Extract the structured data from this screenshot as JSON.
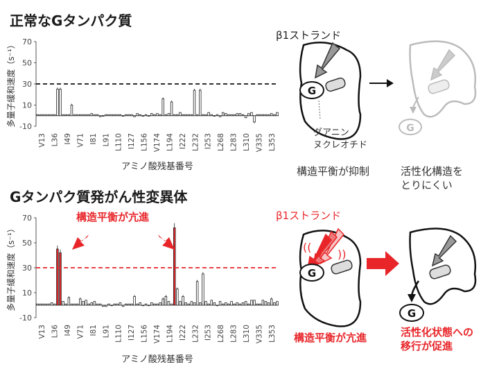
{
  "headings": {
    "top": "正常なGタンパク質",
    "bottom": "Gタンパク質発がん性変異体"
  },
  "chart_data": [
    {
      "type": "bar",
      "title": "正常なGタンパク質",
      "ylabel": "多量子緩和速度（s⁻¹）",
      "xlabel": "アミノ酸残基番号",
      "ylim": [
        -10,
        70
      ],
      "yticks": [
        -10,
        10,
        30,
        50,
        70
      ],
      "reference_line": 30,
      "reference_color": "#111111",
      "bar_color": "#ffffff",
      "tick_labels": [
        "V13",
        "L36",
        "I49",
        "V71",
        "I81",
        "L91",
        "L110",
        "I127",
        "L156",
        "V174",
        "L194",
        "I222",
        "L232",
        "I253",
        "L268",
        "L283",
        "L310",
        "V335",
        "L353"
      ],
      "values": [
        1,
        1,
        1,
        1,
        1,
        1,
        1,
        25,
        25,
        1,
        1,
        1,
        10,
        1,
        1,
        1,
        1,
        1,
        1,
        2,
        1,
        1,
        -1,
        0,
        1,
        1,
        1,
        1,
        1,
        1,
        0,
        1,
        1,
        1,
        -1,
        2,
        1,
        0,
        1,
        0,
        2,
        1,
        2,
        1,
        16,
        1,
        2,
        13,
        1,
        1,
        3,
        1,
        1,
        1,
        1,
        24,
        1,
        24,
        1,
        1,
        3,
        1,
        0,
        1,
        -1,
        3,
        2,
        1,
        1,
        1,
        2,
        2,
        1,
        -2,
        2,
        3,
        -6,
        1,
        1,
        1,
        1,
        1,
        2,
        1,
        3
      ],
      "highlight_indices": [],
      "highlight_color": "#e8262a"
    },
    {
      "type": "bar",
      "title": "Gタンパク質発がん性変異体",
      "ylabel": "多量子緩和速度（s⁻¹）",
      "xlabel": "アミノ酸残基番号",
      "ylim": [
        -10,
        70
      ],
      "yticks": [
        -10,
        10,
        30,
        50,
        70
      ],
      "reference_line": 30,
      "reference_color": "#e8262a",
      "bar_color": "#ffffff",
      "tick_labels": [
        "V13",
        "L36",
        "I49",
        "V71",
        "I81",
        "L91",
        "L110",
        "I127",
        "L156",
        "V174",
        "L194",
        "I222",
        "L232",
        "I253",
        "L268",
        "L283",
        "L310",
        "V335",
        "L353"
      ],
      "values": [
        1,
        1,
        1,
        1,
        1,
        2,
        1,
        45,
        42,
        3,
        1,
        6,
        1,
        1,
        1,
        5,
        3,
        4,
        1,
        2,
        3,
        1,
        1,
        -1,
        -1,
        1,
        0,
        1,
        1,
        2,
        -1,
        1,
        1,
        1,
        7,
        1,
        2,
        0,
        1,
        0,
        2,
        1,
        1,
        2,
        5,
        7,
        3,
        1,
        62,
        13,
        3,
        7,
        2,
        1,
        3,
        2,
        19,
        2,
        25,
        3,
        1,
        4,
        2,
        0,
        3,
        1,
        2,
        1,
        3,
        1,
        2,
        1,
        2,
        3,
        1,
        4,
        4,
        1,
        1,
        4,
        3,
        2,
        5,
        2,
        3
      ],
      "highlight_indices": [
        7,
        8,
        48
      ],
      "highlight_color": "#e8262a"
    }
  ],
  "annotations": {
    "chart2_enhanced": "構造平衡が亢進"
  },
  "diagrams": {
    "normal": {
      "strand_label": "β1ストランド",
      "g_label": "G",
      "gdp_label_1": "グアニン",
      "gdp_label_2": "ヌクレオチド",
      "caption_left": "構造平衡が抑制",
      "caption_right_1": "活性化構造を",
      "caption_right_2": "とりにくい"
    },
    "mutant": {
      "strand_label": "β1ストランド",
      "g_label": "G",
      "caption_left": "構造平衡が亢進",
      "caption_right_1": "活性化状態への",
      "caption_right_2": "移行が促進"
    }
  },
  "colors": {
    "accent": "#e8262a",
    "gray": "#aaaaaa",
    "ink": "#222222"
  }
}
